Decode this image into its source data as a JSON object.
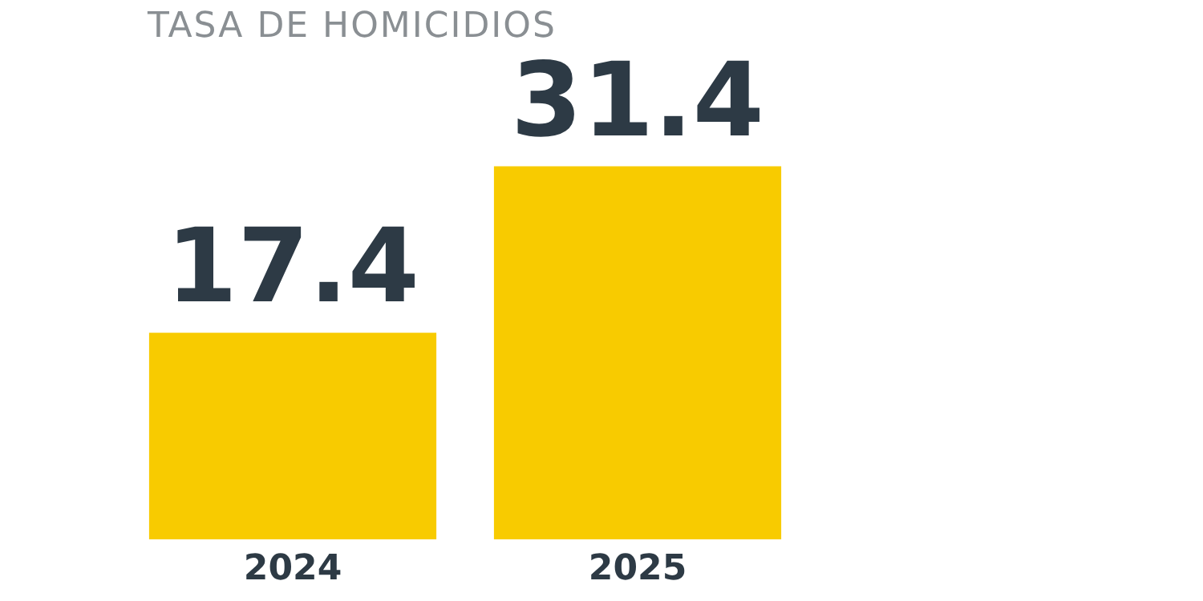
{
  "chart_data": {
    "type": "bar",
    "title": "TASA DE HOMICIDIOS",
    "categories": [
      "2024",
      "2025"
    ],
    "series": [
      {
        "color": "#f8cb00",
        "values": [
          17.4,
          31.4
        ]
      }
    ],
    "data_labels": true,
    "legend": false,
    "grid": false
  }
}
